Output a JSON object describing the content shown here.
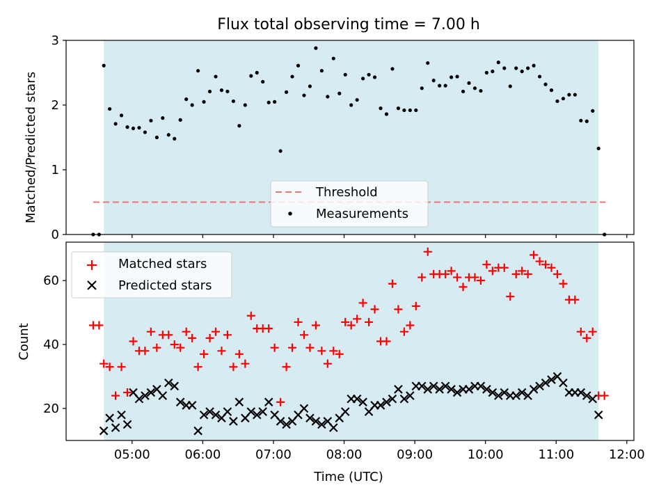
{
  "chart_data": {
    "title": "Flux total observing time = 7.00 h",
    "xlabel": "Time (UTC)",
    "x_ticks": [
      "05:00",
      "06:00",
      "07:00",
      "08:00",
      "09:00",
      "10:00",
      "11:00",
      "12:00"
    ],
    "shaded_interval": [
      "04:36",
      "11:36"
    ],
    "colors": {
      "shade": "#add8e6",
      "threshold": "#e87777",
      "matched": "#ff0000",
      "predicted": "#000000",
      "measurements": "#000000"
    },
    "panels": [
      {
        "type": "scatter",
        "ylabel": "Matched/Predicted stars",
        "ylim": [
          0,
          3
        ],
        "y_ticks": [
          "0",
          "1",
          "2",
          "3"
        ],
        "legend_position": "lower-center",
        "threshold": {
          "name": "Threshold",
          "value": 0.5,
          "x_range": [
            "04:27",
            "11:42"
          ]
        },
        "series": [
          {
            "name": "Measurements",
            "marker": "dot",
            "x": [
              "04:27",
              "04:32",
              "04:36",
              "04:41",
              "04:46",
              "04:51",
              "04:56",
              "05:01",
              "05:06",
              "05:11",
              "05:16",
              "05:21",
              "05:26",
              "05:31",
              "05:36",
              "05:41",
              "05:46",
              "05:51",
              "05:56",
              "06:01",
              "06:06",
              "06:11",
              "06:16",
              "06:21",
              "06:26",
              "06:31",
              "06:36",
              "06:41",
              "06:46",
              "06:51",
              "06:56",
              "07:01",
              "07:06",
              "07:11",
              "07:16",
              "07:21",
              "07:26",
              "07:31",
              "07:36",
              "07:41",
              "07:46",
              "07:51",
              "07:56",
              "08:01",
              "08:06",
              "08:11",
              "08:16",
              "08:21",
              "08:26",
              "08:31",
              "08:36",
              "08:41",
              "08:46",
              "08:51",
              "08:56",
              "09:01",
              "09:06",
              "09:11",
              "09:16",
              "09:21",
              "09:26",
              "09:31",
              "09:36",
              "09:41",
              "09:46",
              "09:51",
              "09:56",
              "10:01",
              "10:06",
              "10:11",
              "10:16",
              "10:21",
              "10:26",
              "10:31",
              "10:36",
              "10:41",
              "10:46",
              "10:51",
              "10:56",
              "11:01",
              "11:06",
              "11:11",
              "11:16",
              "11:21",
              "11:26",
              "11:31",
              "11:36",
              "11:41"
            ],
            "y": [
              0,
              0,
              2.61,
              1.94,
              1.71,
              1.84,
              1.66,
              1.64,
              1.65,
              1.58,
              1.76,
              1.5,
              1.8,
              1.54,
              1.48,
              1.77,
              2.09,
              2.0,
              2.53,
              2.05,
              2.21,
              2.44,
              2.23,
              2.21,
              2.06,
              1.68,
              2.0,
              2.45,
              2.5,
              2.36,
              2.04,
              2.05,
              1.29,
              2.2,
              2.44,
              2.61,
              2.15,
              2.29,
              2.88,
              2.53,
              2.13,
              2.72,
              2.18,
              2.47,
              2.0,
              2.08,
              2.41,
              2.47,
              2.43,
              1.95,
              1.86,
              2.56,
              1.95,
              1.92,
              1.92,
              1.92,
              2.26,
              2.65,
              2.38,
              2.3,
              2.3,
              2.43,
              2.44,
              2.21,
              2.34,
              2.26,
              2.22,
              2.5,
              2.52,
              2.66,
              2.57,
              2.29,
              2.57,
              2.52,
              2.57,
              2.61,
              2.44,
              2.32,
              2.23,
              2.06,
              2.1,
              2.16,
              2.16,
              1.76,
              1.75,
              1.91,
              1.33,
              0
            ]
          }
        ]
      },
      {
        "type": "scatter",
        "ylabel": "Count",
        "ylim": [
          10,
          72
        ],
        "y_ticks": [
          "20",
          "40",
          "60"
        ],
        "legend_position": "top-left",
        "series": [
          {
            "name": "Matched stars",
            "marker": "plus",
            "x": [
              "04:27",
              "04:32",
              "04:36",
              "04:41",
              "04:46",
              "04:51",
              "04:56",
              "05:01",
              "05:06",
              "05:11",
              "05:16",
              "05:21",
              "05:26",
              "05:31",
              "05:36",
              "05:41",
              "05:46",
              "05:51",
              "05:56",
              "06:01",
              "06:06",
              "06:11",
              "06:16",
              "06:21",
              "06:26",
              "06:31",
              "06:36",
              "06:41",
              "06:46",
              "06:51",
              "06:56",
              "07:01",
              "07:06",
              "07:11",
              "07:16",
              "07:21",
              "07:26",
              "07:31",
              "07:36",
              "07:41",
              "07:46",
              "07:51",
              "07:56",
              "08:01",
              "08:06",
              "08:11",
              "08:16",
              "08:21",
              "08:26",
              "08:31",
              "08:36",
              "08:41",
              "08:46",
              "08:51",
              "08:56",
              "09:01",
              "09:06",
              "09:11",
              "09:16",
              "09:21",
              "09:26",
              "09:31",
              "09:36",
              "09:41",
              "09:46",
              "09:51",
              "09:56",
              "10:01",
              "10:06",
              "10:11",
              "10:16",
              "10:21",
              "10:26",
              "10:31",
              "10:36",
              "10:41",
              "10:46",
              "10:51",
              "10:56",
              "11:01",
              "11:06",
              "11:11",
              "11:16",
              "11:21",
              "11:26",
              "11:31",
              "11:36",
              "11:41"
            ],
            "y": [
              46,
              46,
              34,
              33,
              24,
              33,
              25,
              41,
              38,
              38,
              44,
              39,
              43,
              43,
              40,
              39,
              44,
              42,
              33,
              37,
              42,
              44,
              38,
              43,
              33,
              37,
              34,
              49,
              45,
              45,
              45,
              39,
              22,
              33,
              39,
              47,
              43,
              39,
              46,
              38,
              34,
              38,
              37,
              47,
              46,
              48,
              53,
              47,
              51,
              41,
              41,
              59,
              51,
              44,
              46,
              52,
              61,
              69,
              62,
              62,
              62,
              63,
              61,
              58,
              61,
              61,
              60,
              65,
              63,
              64,
              64,
              55,
              62,
              63,
              62,
              68,
              66,
              65,
              64,
              62,
              59,
              54,
              54,
              44,
              42,
              44,
              24,
              24
            ]
          },
          {
            "name": "Predicted stars",
            "marker": "x",
            "x": [
              "04:36",
              "04:41",
              "04:46",
              "04:51",
              "04:56",
              "05:01",
              "05:06",
              "05:11",
              "05:16",
              "05:21",
              "05:26",
              "05:31",
              "05:36",
              "05:41",
              "05:46",
              "05:51",
              "05:56",
              "06:01",
              "06:06",
              "06:11",
              "06:16",
              "06:21",
              "06:26",
              "06:31",
              "06:36",
              "06:41",
              "06:46",
              "06:51",
              "06:56",
              "07:01",
              "07:06",
              "07:11",
              "07:16",
              "07:21",
              "07:26",
              "07:31",
              "07:36",
              "07:41",
              "07:46",
              "07:51",
              "07:56",
              "08:01",
              "08:06",
              "08:11",
              "08:16",
              "08:21",
              "08:26",
              "08:31",
              "08:36",
              "08:41",
              "08:46",
              "08:51",
              "08:56",
              "09:01",
              "09:06",
              "09:11",
              "09:16",
              "09:21",
              "09:26",
              "09:31",
              "09:36",
              "09:41",
              "09:46",
              "09:51",
              "09:56",
              "10:01",
              "10:06",
              "10:11",
              "10:16",
              "10:21",
              "10:26",
              "10:31",
              "10:36",
              "10:41",
              "10:46",
              "10:51",
              "10:56",
              "11:01",
              "11:06",
              "11:11",
              "11:16",
              "11:21",
              "11:26",
              "11:31",
              "11:36"
            ],
            "y": [
              13,
              17,
              14,
              18,
              15,
              25,
              23,
              24,
              25,
              26,
              24,
              28,
              27,
              22,
              21,
              21,
              13,
              18,
              19,
              18,
              17,
              19,
              16,
              22,
              17,
              19,
              18,
              19,
              22,
              18,
              16,
              15,
              16,
              18,
              20,
              17,
              16,
              15,
              16,
              14,
              17,
              19,
              23,
              23,
              22,
              19,
              21,
              21,
              22,
              23,
              26,
              23,
              24,
              27,
              27,
              26,
              27,
              26,
              27,
              26,
              25,
              26,
              26,
              27,
              27,
              26,
              25,
              24,
              25,
              24,
              24,
              25,
              24,
              26,
              27,
              28,
              29,
              30,
              28,
              25,
              25,
              25,
              24,
              23,
              18
            ]
          }
        ]
      }
    ]
  }
}
